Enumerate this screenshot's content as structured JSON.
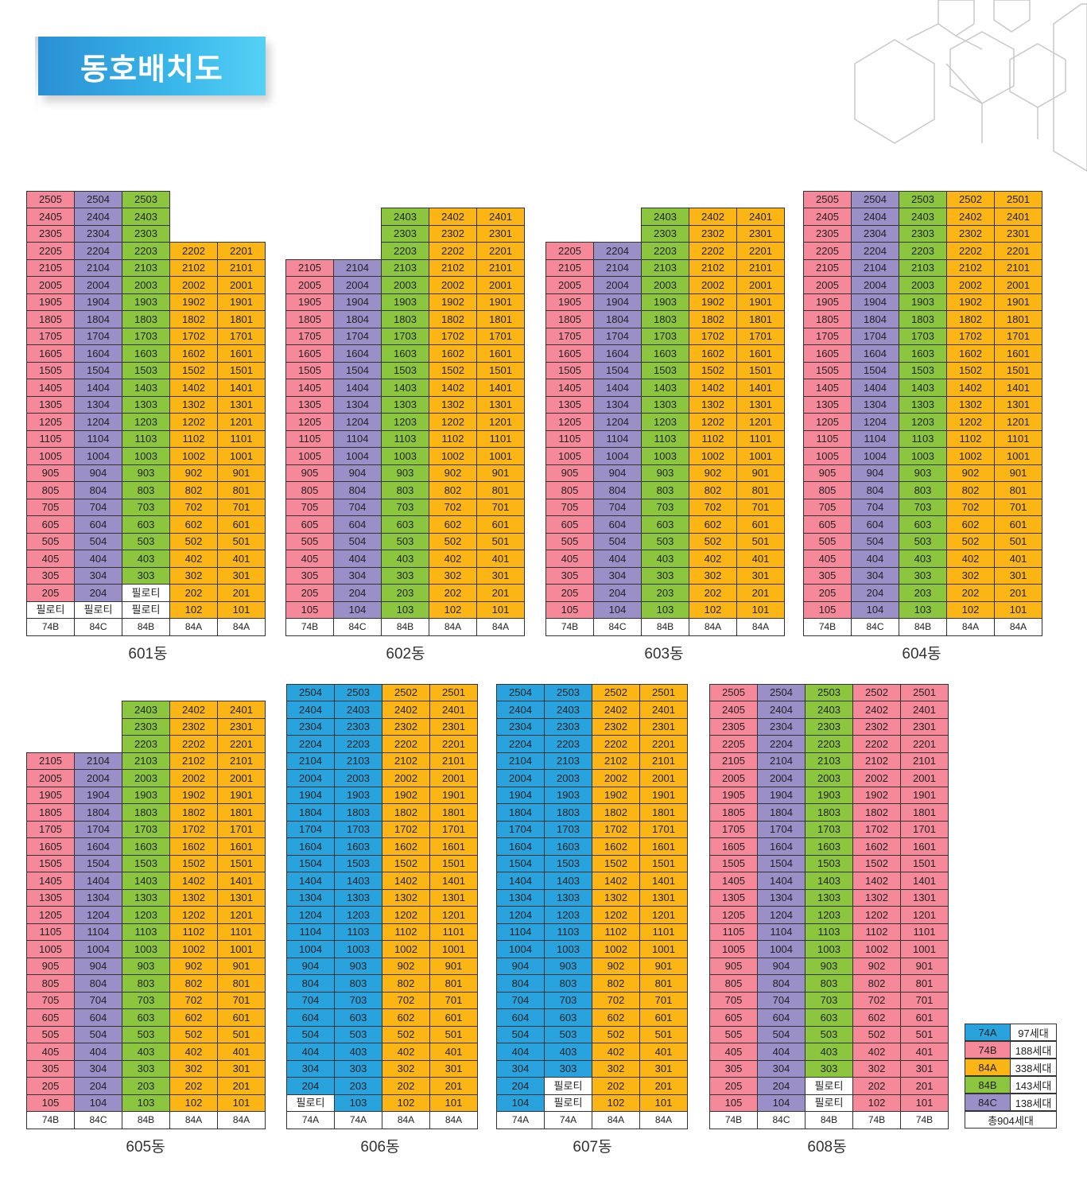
{
  "title": "동호배치도",
  "colors": {
    "74A": "#29a3dd",
    "74B": "#f5899a",
    "84A": "#fbb515",
    "84B": "#8cc63f",
    "84C": "#9b8fc8",
    "pilotis": "#ffffff"
  },
  "pilotis_label": "필로티",
  "legend": {
    "items": [
      {
        "type": "74A",
        "count": "97세대"
      },
      {
        "type": "74B",
        "count": "188세대"
      },
      {
        "type": "84A",
        "count": "338세대"
      },
      {
        "type": "84B",
        "count": "143세대"
      },
      {
        "type": "84C",
        "count": "138세대"
      }
    ],
    "total": "총904세대"
  },
  "buildings": [
    {
      "name": "601동",
      "cols": [
        {
          "type": "74B",
          "line": "05",
          "top": 25,
          "bottom": 2,
          "pilotis": [
            1
          ]
        },
        {
          "type": "84C",
          "line": "04",
          "top": 25,
          "bottom": 2,
          "pilotis": [
            1
          ]
        },
        {
          "type": "84B",
          "line": "03",
          "top": 25,
          "bottom": 3,
          "pilotis": [
            1,
            2
          ]
        },
        {
          "type": "84A",
          "line": "02",
          "top": 22,
          "bottom": 1,
          "pilotis": []
        },
        {
          "type": "84A",
          "line": "01",
          "top": 22,
          "bottom": 1,
          "pilotis": []
        }
      ]
    },
    {
      "name": "602동",
      "cols": [
        {
          "type": "74B",
          "line": "05",
          "top": 21,
          "bottom": 1,
          "pilotis": []
        },
        {
          "type": "84C",
          "line": "04",
          "top": 21,
          "bottom": 1,
          "pilotis": []
        },
        {
          "type": "84B",
          "line": "03",
          "top": 24,
          "bottom": 1,
          "pilotis": []
        },
        {
          "type": "84A",
          "line": "02",
          "top": 24,
          "bottom": 1,
          "pilotis": []
        },
        {
          "type": "84A",
          "line": "01",
          "top": 24,
          "bottom": 1,
          "pilotis": []
        }
      ]
    },
    {
      "name": "603동",
      "cols": [
        {
          "type": "74B",
          "line": "05",
          "top": 22,
          "bottom": 1,
          "pilotis": []
        },
        {
          "type": "84C",
          "line": "04",
          "top": 22,
          "bottom": 1,
          "pilotis": []
        },
        {
          "type": "84B",
          "line": "03",
          "top": 24,
          "bottom": 1,
          "pilotis": []
        },
        {
          "type": "84A",
          "line": "02",
          "top": 24,
          "bottom": 1,
          "pilotis": []
        },
        {
          "type": "84A",
          "line": "01",
          "top": 24,
          "bottom": 1,
          "pilotis": []
        }
      ]
    },
    {
      "name": "604동",
      "cols": [
        {
          "type": "74B",
          "line": "05",
          "top": 25,
          "bottom": 1,
          "pilotis": []
        },
        {
          "type": "84C",
          "line": "04",
          "top": 25,
          "bottom": 1,
          "pilotis": []
        },
        {
          "type": "84B",
          "line": "03",
          "top": 25,
          "bottom": 1,
          "pilotis": []
        },
        {
          "type": "84A",
          "line": "02",
          "top": 25,
          "bottom": 1,
          "pilotis": []
        },
        {
          "type": "84A",
          "line": "01",
          "top": 25,
          "bottom": 1,
          "pilotis": []
        }
      ]
    },
    {
      "name": "605동",
      "cols": [
        {
          "type": "74B",
          "line": "05",
          "top": 21,
          "bottom": 1,
          "pilotis": []
        },
        {
          "type": "84C",
          "line": "04",
          "top": 21,
          "bottom": 1,
          "pilotis": []
        },
        {
          "type": "84B",
          "line": "03",
          "top": 24,
          "bottom": 1,
          "pilotis": []
        },
        {
          "type": "84A",
          "line": "02",
          "top": 24,
          "bottom": 1,
          "pilotis": []
        },
        {
          "type": "84A",
          "line": "01",
          "top": 24,
          "bottom": 1,
          "pilotis": []
        }
      ]
    },
    {
      "name": "606동",
      "cols": [
        {
          "type": "74A",
          "line": "04",
          "top": 25,
          "bottom": 2,
          "pilotis": [
            1
          ]
        },
        {
          "type": "74A",
          "line": "03",
          "top": 25,
          "bottom": 1,
          "pilotis": []
        },
        {
          "type": "84A",
          "line": "02",
          "top": 25,
          "bottom": 1,
          "pilotis": []
        },
        {
          "type": "84A",
          "line": "01",
          "top": 25,
          "bottom": 1,
          "pilotis": []
        }
      ]
    },
    {
      "name": "607동",
      "cols": [
        {
          "type": "74A",
          "line": "04",
          "top": 25,
          "bottom": 1,
          "pilotis": []
        },
        {
          "type": "74A",
          "line": "03",
          "top": 25,
          "bottom": 3,
          "pilotis": [
            1,
            2
          ]
        },
        {
          "type": "84A",
          "line": "02",
          "top": 25,
          "bottom": 1,
          "pilotis": []
        },
        {
          "type": "84A",
          "line": "01",
          "top": 25,
          "bottom": 1,
          "pilotis": []
        }
      ]
    },
    {
      "name": "608동",
      "cols": [
        {
          "type": "74B",
          "line": "05",
          "top": 25,
          "bottom": 1,
          "pilotis": []
        },
        {
          "type": "84C",
          "line": "04",
          "top": 25,
          "bottom": 1,
          "pilotis": []
        },
        {
          "type": "84B",
          "line": "03",
          "top": 25,
          "bottom": 3,
          "pilotis": [
            1,
            2
          ]
        },
        {
          "type": "74B",
          "line": "02",
          "top": 25,
          "bottom": 1,
          "pilotis": []
        },
        {
          "type": "74B",
          "line": "01",
          "top": 25,
          "bottom": 1,
          "pilotis": []
        }
      ]
    }
  ]
}
